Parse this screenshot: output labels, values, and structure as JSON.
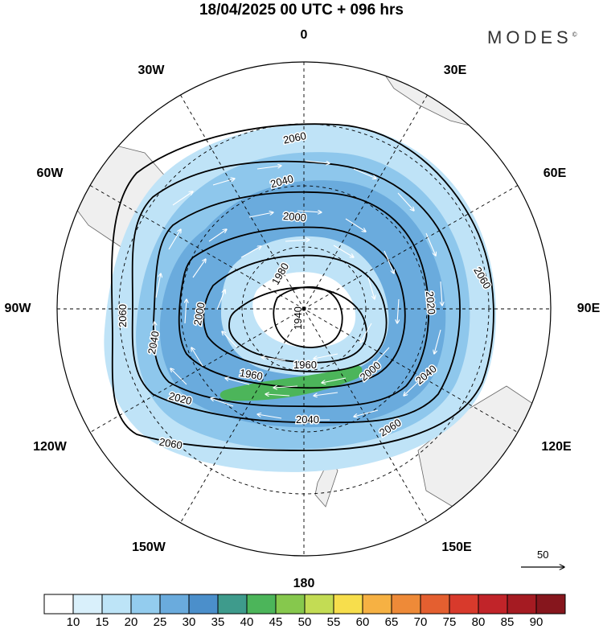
{
  "title": "18/04/2025  00 UTC  + 096 hrs",
  "brand": "MODES",
  "brand_mark": "©",
  "longitude_labels": {
    "lon_0": "0",
    "lon_30E": "30E",
    "lon_60E": "60E",
    "lon_90E": "90E",
    "lon_120E": "120E",
    "lon_150E": "150E",
    "lon_180": "180",
    "lon_150W": "150W",
    "lon_120W": "120W",
    "lon_90W": "90W",
    "lon_60W": "60W",
    "lon_30W": "30W"
  },
  "contour_labels": [
    "2060",
    "2040",
    "2020",
    "2000",
    "1980",
    "1960",
    "1940"
  ],
  "reference_vector": "50",
  "colorbar": {
    "ticks": [
      "10",
      "15",
      "20",
      "25",
      "30",
      "35",
      "40",
      "45",
      "50",
      "55",
      "60",
      "65",
      "70",
      "75",
      "80",
      "85",
      "90"
    ],
    "colors": [
      "#ffffff",
      "#d9f0fb",
      "#bde4f7",
      "#93ccee",
      "#6aabdd",
      "#4b8fcb",
      "#3e9b8c",
      "#4cb55a",
      "#86c84d",
      "#c3dc54",
      "#f7de4c",
      "#f6b143",
      "#ee8a38",
      "#e45f30",
      "#d83a2c",
      "#c12429",
      "#a51b22",
      "#86161d"
    ]
  },
  "colors": {
    "land": "#efefef",
    "wind_fill_light": "#bfe3f7",
    "wind_fill_mid": "#8ec7ec",
    "wind_fill_strong": "#5aa2d8",
    "jet_core": "#4cb55a"
  }
}
